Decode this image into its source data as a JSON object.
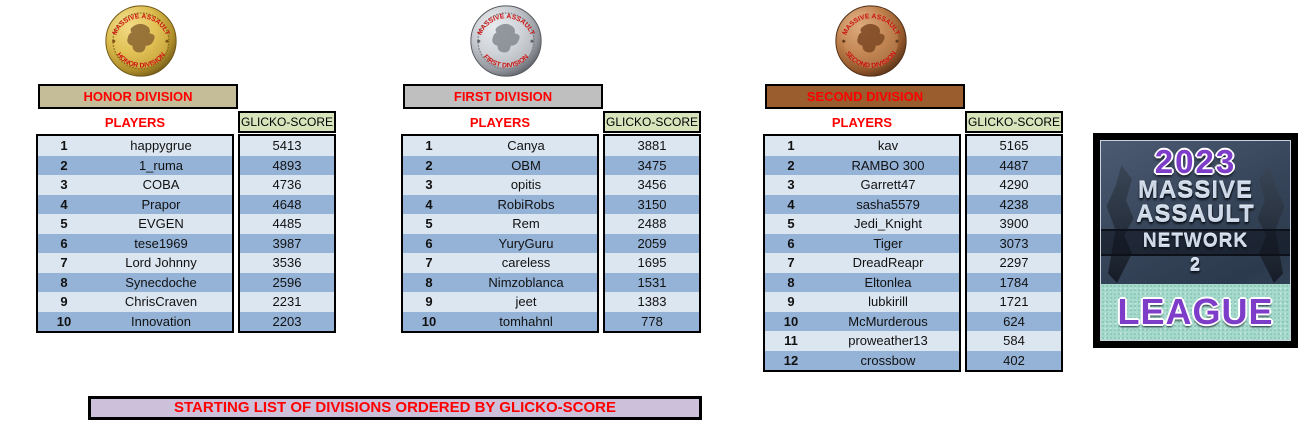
{
  "medals": {
    "top_text": "MASSIVE ASSAULT"
  },
  "table_headers": {
    "players": "PLAYERS",
    "score": "GLICKO-SCORE"
  },
  "banner": {
    "text": "STARTING LIST OF DIVISIONS ORDERED BY GLICKO-SCORE"
  },
  "logo": {
    "year": "2023",
    "title_line1": "MASSIVE",
    "title_line2": "ASSAULT",
    "title_line3": "NETWORK",
    "title_line4": "2",
    "bottom": "LEAGUE"
  },
  "colors": {
    "honor_header_bg": "#c4bd97",
    "first_header_bg": "#bfbfbf",
    "second_header_bg": "#9a5d2e",
    "score_header_bg": "#d8e4bc",
    "row_light": "#dce6f1",
    "row_dark": "#95b3d7",
    "banner_bg": "#ccc0da",
    "accent_red": "#ff0000"
  },
  "divisions": [
    {
      "name": "HONOR DIVISION",
      "medal_text": "HONOR DIVISION",
      "medal_metal": "gold",
      "players": [
        {
          "rank": "1",
          "name": "happygrue",
          "score": "5413"
        },
        {
          "rank": "2",
          "name": "1_ruma",
          "score": "4893"
        },
        {
          "rank": "3",
          "name": "COBA",
          "score": "4736"
        },
        {
          "rank": "4",
          "name": "Prapor",
          "score": "4648"
        },
        {
          "rank": "5",
          "name": "EVGEN",
          "score": "4485"
        },
        {
          "rank": "6",
          "name": "tese1969",
          "score": "3987"
        },
        {
          "rank": "7",
          "name": "Lord Johnny",
          "score": "3536"
        },
        {
          "rank": "8",
          "name": "Synecdoche",
          "score": "2596"
        },
        {
          "rank": "9",
          "name": "ChrisCraven",
          "score": "2231"
        },
        {
          "rank": "10",
          "name": "Innovation",
          "score": "2203"
        }
      ]
    },
    {
      "name": "FIRST DIVISION",
      "medal_text": "FIRST DIVISION",
      "medal_metal": "silver",
      "players": [
        {
          "rank": "1",
          "name": "Canya",
          "score": "3881"
        },
        {
          "rank": "2",
          "name": "OBM",
          "score": "3475"
        },
        {
          "rank": "3",
          "name": "opitis",
          "score": "3456"
        },
        {
          "rank": "4",
          "name": "RobiRobs",
          "score": "3150"
        },
        {
          "rank": "5",
          "name": "Rem",
          "score": "2488"
        },
        {
          "rank": "6",
          "name": "YuryGuru",
          "score": "2059"
        },
        {
          "rank": "7",
          "name": "careless",
          "score": "1695"
        },
        {
          "rank": "8",
          "name": "Nimzoblanca",
          "score": "1531"
        },
        {
          "rank": "9",
          "name": "jeet",
          "score": "1383"
        },
        {
          "rank": "10",
          "name": "tomhahnl",
          "score": "778"
        }
      ]
    },
    {
      "name": "SECOND DIVISION",
      "medal_text": "SECOND DIVISION",
      "medal_metal": "bronze",
      "players": [
        {
          "rank": "1",
          "name": "kav",
          "score": "5165"
        },
        {
          "rank": "2",
          "name": "RAMBO 300",
          "score": "4487"
        },
        {
          "rank": "3",
          "name": "Garrett47",
          "score": "4290"
        },
        {
          "rank": "4",
          "name": "sasha5579",
          "score": "4238"
        },
        {
          "rank": "5",
          "name": "Jedi_Knight",
          "score": "3900"
        },
        {
          "rank": "6",
          "name": "Tiger",
          "score": "3073"
        },
        {
          "rank": "7",
          "name": "DreadReapr",
          "score": "2297"
        },
        {
          "rank": "8",
          "name": "Eltonlea",
          "score": "1784"
        },
        {
          "rank": "9",
          "name": "lubkirill",
          "score": "1721"
        },
        {
          "rank": "10",
          "name": "McMurderous",
          "score": "624"
        },
        {
          "rank": "11",
          "name": "proweather13",
          "score": "584"
        },
        {
          "rank": "12",
          "name": "crossbow",
          "score": "402"
        }
      ]
    }
  ]
}
